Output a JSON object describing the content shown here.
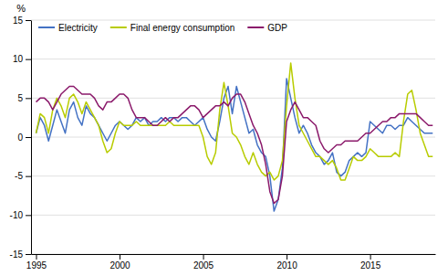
{
  "chart_data": {
    "type": "line",
    "ylabel": "%",
    "x": [
      1995.0,
      1995.25,
      1995.5,
      1995.75,
      1996.0,
      1996.25,
      1996.5,
      1996.75,
      1997.0,
      1997.25,
      1997.5,
      1997.75,
      1998.0,
      1998.25,
      1998.5,
      1998.75,
      1999.0,
      1999.25,
      1999.5,
      1999.75,
      2000.0,
      2000.25,
      2000.5,
      2000.75,
      2001.0,
      2001.25,
      2001.5,
      2001.75,
      2002.0,
      2002.25,
      2002.5,
      2002.75,
      2003.0,
      2003.25,
      2003.5,
      2003.75,
      2004.0,
      2004.25,
      2004.5,
      2004.75,
      2005.0,
      2005.25,
      2005.5,
      2005.75,
      2006.0,
      2006.25,
      2006.5,
      2006.75,
      2007.0,
      2007.25,
      2007.5,
      2007.75,
      2008.0,
      2008.25,
      2008.5,
      2008.75,
      2009.0,
      2009.25,
      2009.5,
      2009.75,
      2010.0,
      2010.25,
      2010.5,
      2010.75,
      2011.0,
      2011.25,
      2011.5,
      2011.75,
      2012.0,
      2012.25,
      2012.5,
      2012.75,
      2013.0,
      2013.25,
      2013.5,
      2013.75,
      2014.0,
      2014.25,
      2014.5,
      2014.75,
      2015.0,
      2015.25,
      2015.5,
      2015.75,
      2016.0,
      2016.25,
      2016.5,
      2016.75,
      2017.0,
      2017.25,
      2017.5,
      2017.75,
      2018.0,
      2018.25,
      2018.5,
      2018.75
    ],
    "series": [
      {
        "name": "Electricity",
        "color": "#4472c4",
        "values": [
          0.5,
          2.5,
          1.5,
          -0.5,
          1.5,
          3.5,
          2.0,
          0.5,
          3.5,
          4.5,
          2.5,
          1.5,
          4.0,
          3.0,
          2.5,
          1.5,
          0.5,
          -0.5,
          0.5,
          1.5,
          2.0,
          1.5,
          1.0,
          1.5,
          2.5,
          2.0,
          2.5,
          1.5,
          2.0,
          2.0,
          2.5,
          2.0,
          2.5,
          2.5,
          2.0,
          2.5,
          2.5,
          2.0,
          1.5,
          2.0,
          2.5,
          1.0,
          0.0,
          -0.5,
          2.0,
          5.0,
          6.5,
          3.0,
          6.5,
          4.5,
          2.5,
          0.5,
          1.0,
          -1.0,
          -2.0,
          -2.5,
          -5.0,
          -9.5,
          -8.0,
          -4.0,
          7.5,
          5.0,
          2.5,
          0.5,
          1.5,
          0.5,
          -1.0,
          -2.0,
          -2.5,
          -3.5,
          -3.0,
          -2.0,
          -4.5,
          -5.0,
          -4.5,
          -3.0,
          -2.5,
          -2.0,
          -2.5,
          -2.0,
          2.0,
          1.5,
          1.0,
          0.5,
          1.5,
          1.5,
          1.0,
          1.5,
          1.5,
          2.5,
          2.0,
          1.5,
          1.0,
          0.5,
          0.5,
          0.5
        ]
      },
      {
        "name": "Final energy consumption",
        "color": "#b8cc00",
        "values": [
          0.5,
          3.0,
          2.5,
          0.5,
          3.5,
          5.0,
          4.0,
          2.5,
          5.0,
          5.5,
          4.5,
          3.0,
          4.5,
          3.5,
          2.5,
          1.5,
          -0.5,
          -2.0,
          -1.5,
          0.5,
          2.0,
          1.5,
          1.5,
          1.5,
          2.0,
          1.5,
          1.5,
          1.5,
          1.5,
          1.5,
          1.5,
          1.5,
          2.0,
          1.5,
          1.5,
          1.5,
          1.5,
          1.5,
          1.5,
          1.5,
          0.0,
          -2.5,
          -3.5,
          -2.0,
          3.5,
          7.0,
          4.0,
          0.5,
          0.0,
          -1.0,
          -2.5,
          -3.5,
          -2.0,
          -3.5,
          -4.5,
          -5.0,
          -4.5,
          -5.5,
          -5.0,
          -3.0,
          4.0,
          9.5,
          5.0,
          1.5,
          0.5,
          -0.5,
          -1.5,
          -2.5,
          -2.5,
          -3.0,
          -3.5,
          -3.0,
          -4.0,
          -5.5,
          -5.5,
          -4.0,
          -2.5,
          -3.0,
          -3.0,
          -2.5,
          -1.5,
          -2.0,
          -2.5,
          -2.5,
          -2.5,
          -2.5,
          -2.0,
          -2.5,
          2.0,
          5.5,
          6.0,
          3.5,
          0.5,
          -1.0,
          -2.5,
          -2.5
        ]
      },
      {
        "name": "GDP",
        "color": "#8b1a6b",
        "values": [
          4.5,
          5.0,
          5.0,
          4.5,
          3.5,
          4.5,
          5.5,
          6.0,
          6.5,
          6.5,
          6.0,
          5.5,
          5.5,
          5.5,
          5.0,
          4.0,
          3.5,
          4.5,
          4.5,
          5.0,
          5.5,
          5.5,
          5.0,
          3.5,
          2.5,
          2.5,
          2.5,
          2.0,
          1.5,
          1.5,
          2.0,
          2.5,
          2.0,
          2.5,
          2.5,
          3.0,
          3.5,
          4.0,
          4.0,
          3.5,
          2.5,
          3.0,
          3.5,
          4.0,
          4.0,
          4.5,
          4.0,
          5.0,
          5.5,
          5.5,
          4.5,
          3.0,
          1.5,
          0.5,
          -1.0,
          -3.5,
          -7.0,
          -8.5,
          -8.0,
          -5.0,
          2.0,
          3.5,
          4.5,
          3.5,
          2.5,
          2.5,
          2.0,
          1.5,
          -0.5,
          -1.5,
          -2.0,
          -1.5,
          -1.0,
          -1.0,
          -0.5,
          -0.5,
          -0.5,
          -0.5,
          0.0,
          0.5,
          0.5,
          1.0,
          1.5,
          2.0,
          2.0,
          2.5,
          2.5,
          3.0,
          3.0,
          3.0,
          3.0,
          3.0,
          2.5,
          2.0,
          1.5,
          1.5
        ]
      }
    ],
    "xlim": [
      1994.7,
      2018.9
    ],
    "xticks": [
      1995,
      2000,
      2005,
      2010,
      2015
    ],
    "ylim": [
      -15,
      15
    ],
    "yticks": [
      -15,
      -10,
      -5,
      0,
      5,
      10,
      15
    ],
    "grid": true,
    "legend": "top-left"
  }
}
